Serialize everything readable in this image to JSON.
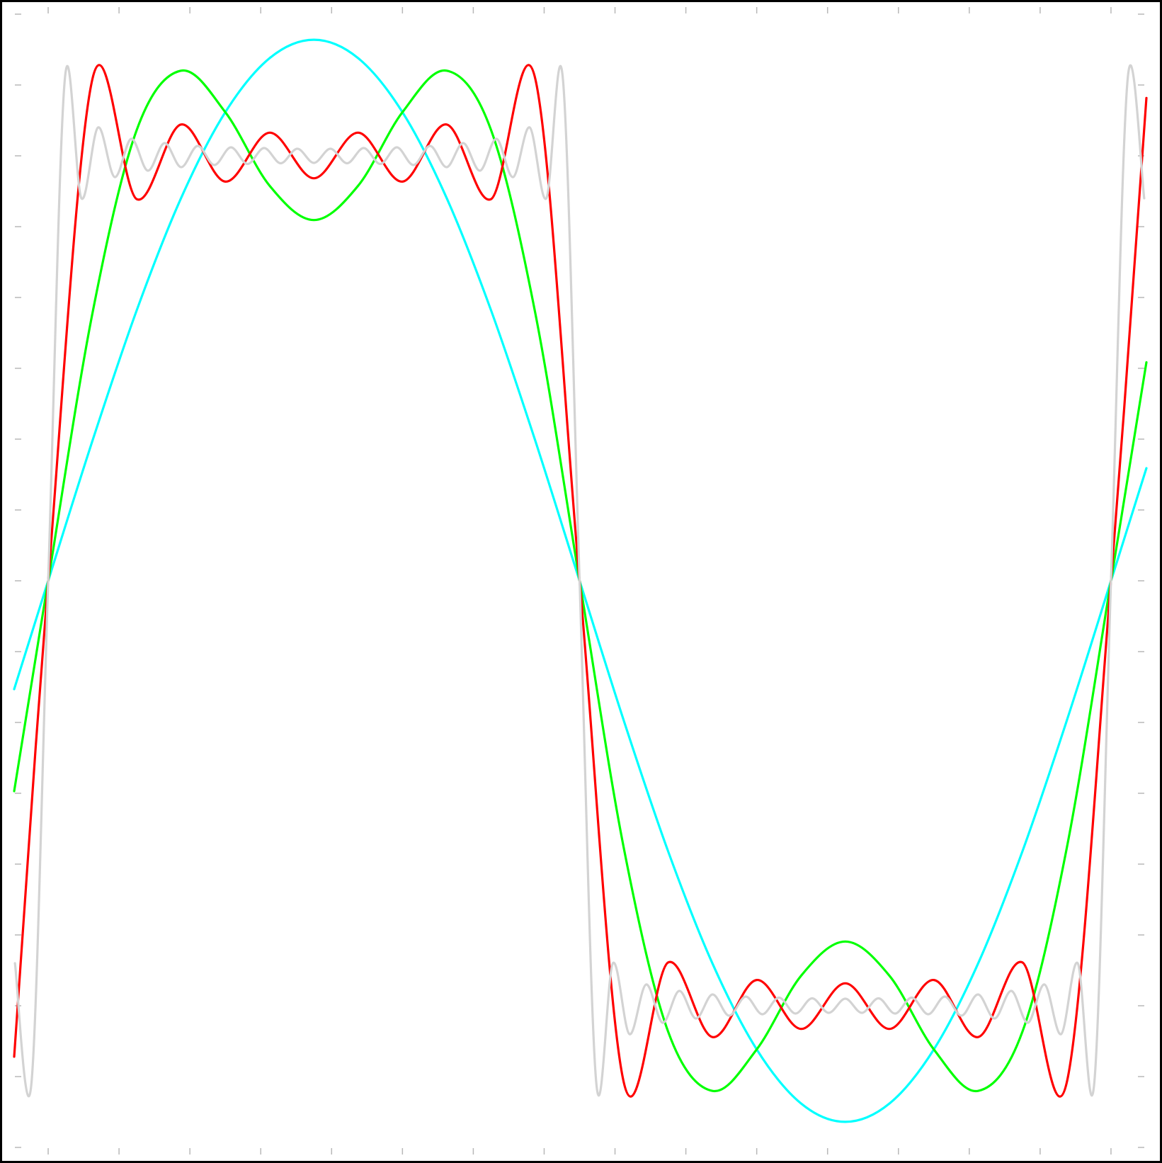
{
  "chart_data": {
    "type": "line",
    "xlim": [
      -0.67,
      15.71
    ],
    "ylim": [
      -8.21,
      8.19
    ],
    "xticks": [
      0,
      1,
      2,
      3,
      4,
      5,
      6,
      7,
      8,
      9,
      10,
      11,
      12,
      13,
      14,
      15
    ],
    "yticks": [
      -8,
      -7,
      -6,
      -5,
      -4,
      -3,
      -2,
      -1,
      0,
      1,
      2,
      3,
      4,
      5,
      6,
      7,
      8
    ],
    "series": [
      {
        "color": "#00ffff",
        "x": [
          -0.48,
          0,
          0.625,
          1.25,
          1.875,
          2.5,
          3.125,
          3.75,
          4.375,
          5,
          5.625,
          6.25,
          6.875,
          7.5,
          8.125,
          8.75,
          9.375,
          10,
          10.625,
          11.25,
          11.875,
          12.5,
          13.125,
          13.75,
          14.375,
          15,
          15.5
        ],
        "values": [
          -1.53,
          0,
          1.977,
          3.82,
          5.402,
          6.616,
          7.379,
          7.639,
          7.379,
          6.616,
          5.402,
          3.82,
          1.977,
          0,
          -1.977,
          -3.82,
          -5.402,
          -6.616,
          -7.379,
          -7.639,
          -7.379,
          -6.616,
          -5.402,
          -3.82,
          -1.977,
          0,
          1.59
        ]
      },
      {
        "color": "#00ff00",
        "x": [
          -0.48,
          0,
          0.625,
          1.25,
          1.875,
          2.5,
          3.125,
          3.75,
          4.375,
          5,
          5.625,
          6.25,
          6.875,
          7.5,
          8.125,
          8.75,
          9.375,
          10,
          10.625,
          11.25,
          11.875,
          12.5,
          13.125,
          13.75,
          14.375,
          15,
          15.5
        ],
        "values": [
          -2.97,
          0,
          3.778,
          6.366,
          7.202,
          6.616,
          5.578,
          5.093,
          5.578,
          6.616,
          7.202,
          6.366,
          3.778,
          0,
          -3.778,
          -6.366,
          -7.202,
          -6.616,
          -5.578,
          -5.093,
          -5.578,
          -6.616,
          -7.202,
          -6.366,
          -3.778,
          0,
          3.085
        ]
      },
      {
        "color": "#ff0000",
        "x": [
          -0.48,
          0,
          0.625,
          1.25,
          1.875,
          2.5,
          3.125,
          3.75,
          4.375,
          5,
          5.625,
          6.25,
          6.875,
          7.5,
          8.125,
          8.75,
          9.375,
          10,
          10.625,
          11.25,
          11.875,
          12.5,
          13.125,
          13.75,
          14.375,
          15,
          15.5
        ],
        "values": [
          -6.719,
          0,
          7.087,
          5.388,
          6.442,
          5.636,
          6.327,
          5.683,
          6.327,
          5.636,
          6.442,
          5.388,
          7.087,
          0,
          -7.087,
          -5.388,
          -6.442,
          -5.636,
          -6.327,
          -5.683,
          -6.327,
          -5.636,
          -6.442,
          -5.388,
          -7.087,
          0,
          6.817
        ]
      },
      {
        "color": "#d3d3d3",
        "x": [
          -0.469,
          -0.234,
          0,
          0.234,
          0.469,
          0.703,
          0.938,
          1.172,
          1.406,
          1.641,
          1.875,
          2.109,
          2.344,
          2.578,
          2.813,
          3.047,
          3.281,
          3.516,
          3.75,
          3.984,
          4.219,
          4.453,
          4.688,
          4.922,
          5.156,
          5.391,
          5.625,
          5.859,
          6.094,
          6.328,
          6.563,
          6.797,
          7.031,
          7.266,
          7.5,
          7.734,
          7.969,
          8.203,
          8.438,
          8.672,
          8.906,
          9.141,
          9.375,
          9.609,
          9.844,
          10.078,
          10.313,
          10.547,
          10.781,
          11.016,
          11.25,
          11.484,
          11.719,
          11.953,
          12.188,
          12.422,
          12.656,
          12.891,
          13.125,
          13.359,
          13.594,
          13.828,
          14.063,
          14.297,
          14.531,
          14.766,
          15,
          15.234,
          15.469
        ],
        "values": [
          -5.4,
          -7.07,
          0,
          7.07,
          5.4,
          6.4,
          5.7,
          6.24,
          5.79,
          6.18,
          5.84,
          6.14,
          5.87,
          6.12,
          5.885,
          6.11,
          5.895,
          6.1,
          5.9,
          6.1,
          5.895,
          6.11,
          5.885,
          6.12,
          5.87,
          6.14,
          5.84,
          6.18,
          5.79,
          6.24,
          5.7,
          6.4,
          5.4,
          7.07,
          0,
          -7.07,
          -5.4,
          -6.4,
          -5.7,
          -6.24,
          -5.79,
          -6.18,
          -5.84,
          -6.14,
          -5.87,
          -6.12,
          -5.885,
          -6.11,
          -5.895,
          -6.1,
          -5.9,
          -6.1,
          -5.895,
          -6.11,
          -5.885,
          -6.12,
          -5.87,
          -6.14,
          -5.84,
          -6.18,
          -5.79,
          -6.24,
          -5.7,
          -6.4,
          -5.4,
          -7.07,
          0,
          7.07,
          5.4
        ]
      }
    ]
  }
}
